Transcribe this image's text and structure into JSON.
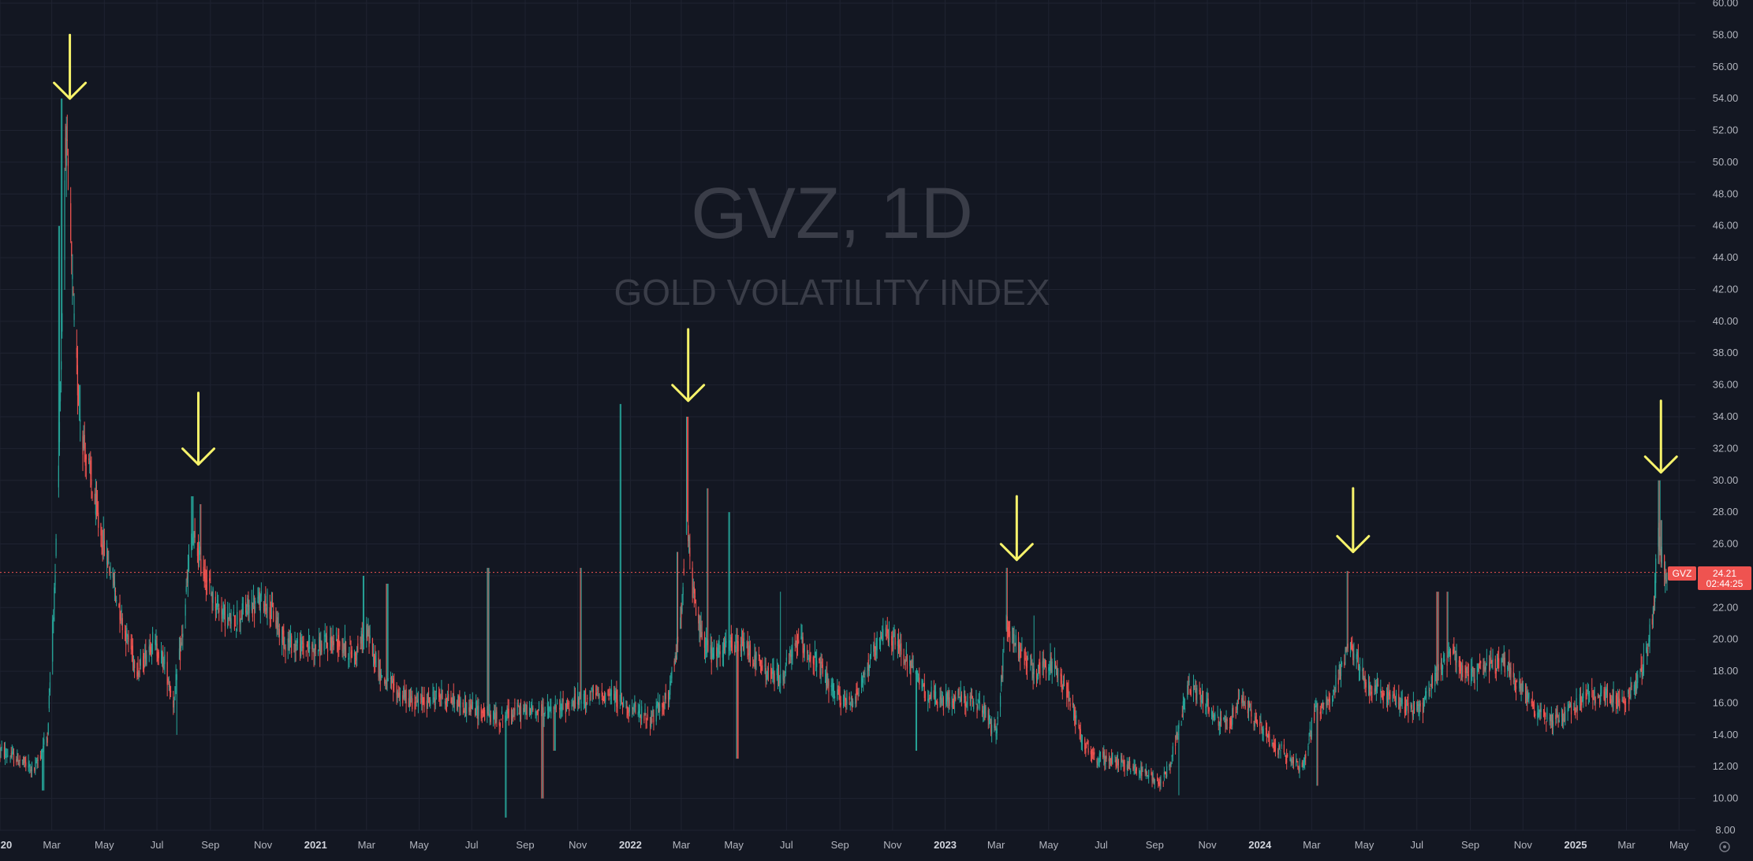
{
  "watermark": {
    "symbol_line": "GVZ, 1D",
    "name_line": "GOLD VOLATILITY INDEX"
  },
  "price_label": {
    "symbol": "GVZ",
    "price": "24.21",
    "countdown": "02:44:25"
  },
  "colors": {
    "background": "#131722",
    "grid": "#1f2331",
    "axis_text": "#b2b5be",
    "up_candle": "#26a69a",
    "down_candle": "#ef5350",
    "watermark": "#3a3d48",
    "arrow": "#f7f36b",
    "price_line": "#ef5350"
  },
  "chart_data": {
    "type": "candlestick",
    "symbol": "GVZ",
    "interval": "1D",
    "title": "GOLD VOLATILITY INDEX",
    "ylim": [
      8,
      60
    ],
    "xlim": [
      "2020-01-01",
      "2025-05-20"
    ],
    "y_ticks": [
      "8.00",
      "10.00",
      "12.00",
      "14.00",
      "16.00",
      "18.00",
      "20.00",
      "22.00",
      "24.00",
      "26.00",
      "28.00",
      "30.00",
      "32.00",
      "34.00",
      "36.00",
      "38.00",
      "40.00",
      "42.00",
      "44.00",
      "46.00",
      "48.00",
      "50.00",
      "52.00",
      "54.00",
      "56.00",
      "58.00",
      "60.00"
    ],
    "x_ticks": [
      {
        "label": "20",
        "date": "2020-01-01",
        "bold": true
      },
      {
        "label": "Mar",
        "date": "2020-03-01",
        "bold": false
      },
      {
        "label": "May",
        "date": "2020-05-01",
        "bold": false
      },
      {
        "label": "Jul",
        "date": "2020-07-01",
        "bold": false
      },
      {
        "label": "Sep",
        "date": "2020-09-01",
        "bold": false
      },
      {
        "label": "Nov",
        "date": "2020-11-01",
        "bold": false
      },
      {
        "label": "2021",
        "date": "2021-01-01",
        "bold": true
      },
      {
        "label": "Mar",
        "date": "2021-03-01",
        "bold": false
      },
      {
        "label": "May",
        "date": "2021-05-01",
        "bold": false
      },
      {
        "label": "Jul",
        "date": "2021-07-01",
        "bold": false
      },
      {
        "label": "Sep",
        "date": "2021-09-01",
        "bold": false
      },
      {
        "label": "Nov",
        "date": "2021-11-01",
        "bold": false
      },
      {
        "label": "2022",
        "date": "2022-01-01",
        "bold": true
      },
      {
        "label": "Mar",
        "date": "2022-03-01",
        "bold": false
      },
      {
        "label": "May",
        "date": "2022-05-01",
        "bold": false
      },
      {
        "label": "Jul",
        "date": "2022-07-01",
        "bold": false
      },
      {
        "label": "Sep",
        "date": "2022-09-01",
        "bold": false
      },
      {
        "label": "Nov",
        "date": "2022-11-01",
        "bold": false
      },
      {
        "label": "2023",
        "date": "2023-01-01",
        "bold": true
      },
      {
        "label": "Mar",
        "date": "2023-03-01",
        "bold": false
      },
      {
        "label": "May",
        "date": "2023-05-01",
        "bold": false
      },
      {
        "label": "Jul",
        "date": "2023-07-01",
        "bold": false
      },
      {
        "label": "Sep",
        "date": "2023-09-01",
        "bold": false
      },
      {
        "label": "Nov",
        "date": "2023-11-01",
        "bold": false
      },
      {
        "label": "2024",
        "date": "2024-01-01",
        "bold": true
      },
      {
        "label": "Mar",
        "date": "2024-03-01",
        "bold": false
      },
      {
        "label": "May",
        "date": "2024-05-01",
        "bold": false
      },
      {
        "label": "Jul",
        "date": "2024-07-01",
        "bold": false
      },
      {
        "label": "Sep",
        "date": "2024-09-01",
        "bold": false
      },
      {
        "label": "Nov",
        "date": "2024-11-01",
        "bold": false
      },
      {
        "label": "2025",
        "date": "2025-01-01",
        "bold": true
      },
      {
        "label": "Mar",
        "date": "2025-03-01",
        "bold": false
      },
      {
        "label": "May",
        "date": "2025-05-01",
        "bold": false
      }
    ],
    "series_anchors": [
      [
        "2020-01-01",
        13.0
      ],
      [
        "2020-01-20",
        12.5
      ],
      [
        "2020-02-10",
        11.8
      ],
      [
        "2020-02-25",
        14.0
      ],
      [
        "2020-03-05",
        24.0
      ],
      [
        "2020-03-12",
        38.0
      ],
      [
        "2020-03-17",
        52.0
      ],
      [
        "2020-03-22",
        46.0
      ],
      [
        "2020-03-28",
        38.0
      ],
      [
        "2020-04-05",
        33.0
      ],
      [
        "2020-04-15",
        30.0
      ],
      [
        "2020-04-25",
        27.0
      ],
      [
        "2020-05-10",
        24.0
      ],
      [
        "2020-05-25",
        20.5
      ],
      [
        "2020-06-10",
        18.0
      ],
      [
        "2020-06-25",
        20.0
      ],
      [
        "2020-07-10",
        18.5
      ],
      [
        "2020-07-20",
        16.0
      ],
      [
        "2020-07-30",
        20.0
      ],
      [
        "2020-08-10",
        26.5
      ],
      [
        "2020-08-20",
        25.0
      ],
      [
        "2020-09-05",
        22.5
      ],
      [
        "2020-09-25",
        21.0
      ],
      [
        "2020-10-15",
        22.0
      ],
      [
        "2020-11-05",
        22.5
      ],
      [
        "2020-11-25",
        20.0
      ],
      [
        "2020-12-15",
        19.5
      ],
      [
        "2021-01-05",
        19.5
      ],
      [
        "2021-01-25",
        20.0
      ],
      [
        "2021-02-15",
        19.0
      ],
      [
        "2021-03-01",
        20.5
      ],
      [
        "2021-03-20",
        17.5
      ],
      [
        "2021-04-10",
        16.5
      ],
      [
        "2021-05-01",
        16.0
      ],
      [
        "2021-05-25",
        16.5
      ],
      [
        "2021-06-15",
        16.0
      ],
      [
        "2021-07-10",
        15.5
      ],
      [
        "2021-08-01",
        15.0
      ],
      [
        "2021-08-20",
        15.5
      ],
      [
        "2021-09-10",
        15.5
      ],
      [
        "2021-10-01",
        15.5
      ],
      [
        "2021-10-25",
        16.0
      ],
      [
        "2021-11-20",
        16.5
      ],
      [
        "2021-12-10",
        16.5
      ],
      [
        "2022-01-05",
        15.5
      ],
      [
        "2022-01-25",
        15.0
      ],
      [
        "2022-02-15",
        16.5
      ],
      [
        "2022-02-28",
        21.0
      ],
      [
        "2022-03-07",
        28.0
      ],
      [
        "2022-03-12",
        24.0
      ],
      [
        "2022-03-20",
        21.0
      ],
      [
        "2022-04-05",
        19.0
      ],
      [
        "2022-04-25",
        19.5
      ],
      [
        "2022-05-15",
        19.5
      ],
      [
        "2022-06-05",
        18.0
      ],
      [
        "2022-06-25",
        17.5
      ],
      [
        "2022-07-15",
        20.0
      ],
      [
        "2022-08-05",
        18.5
      ],
      [
        "2022-08-25",
        16.5
      ],
      [
        "2022-09-15",
        16.0
      ],
      [
        "2022-10-05",
        18.5
      ],
      [
        "2022-10-25",
        20.5
      ],
      [
        "2022-11-15",
        19.0
      ],
      [
        "2022-12-05",
        17.0
      ],
      [
        "2022-12-25",
        16.0
      ],
      [
        "2023-01-20",
        16.5
      ],
      [
        "2023-02-15",
        15.5
      ],
      [
        "2023-03-01",
        14.0
      ],
      [
        "2023-03-13",
        21.0
      ],
      [
        "2023-03-25",
        19.5
      ],
      [
        "2023-04-15",
        18.0
      ],
      [
        "2023-05-05",
        18.5
      ],
      [
        "2023-05-25",
        16.5
      ],
      [
        "2023-06-10",
        13.5
      ],
      [
        "2023-06-25",
        12.5
      ],
      [
        "2023-07-15",
        12.5
      ],
      [
        "2023-08-05",
        12.0
      ],
      [
        "2023-08-25",
        11.5
      ],
      [
        "2023-09-10",
        11.0
      ],
      [
        "2023-09-25",
        13.5
      ],
      [
        "2023-10-10",
        17.0
      ],
      [
        "2023-10-25",
        16.5
      ],
      [
        "2023-11-10",
        15.0
      ],
      [
        "2023-11-25",
        14.5
      ],
      [
        "2023-12-10",
        16.5
      ],
      [
        "2023-12-25",
        15.0
      ],
      [
        "2024-01-15",
        13.5
      ],
      [
        "2024-02-05",
        12.5
      ],
      [
        "2024-02-20",
        12.0
      ],
      [
        "2024-03-05",
        15.5
      ],
      [
        "2024-03-25",
        16.5
      ],
      [
        "2024-04-12",
        19.5
      ],
      [
        "2024-04-20",
        19.0
      ],
      [
        "2024-05-05",
        17.0
      ],
      [
        "2024-05-25",
        16.5
      ],
      [
        "2024-06-15",
        16.0
      ],
      [
        "2024-07-05",
        15.5
      ],
      [
        "2024-07-25",
        18.0
      ],
      [
        "2024-08-10",
        19.5
      ],
      [
        "2024-08-30",
        17.5
      ],
      [
        "2024-09-20",
        18.5
      ],
      [
        "2024-10-10",
        18.5
      ],
      [
        "2024-10-30",
        17.0
      ],
      [
        "2024-11-15",
        15.5
      ],
      [
        "2024-12-05",
        15.0
      ],
      [
        "2024-12-25",
        15.5
      ],
      [
        "2025-01-15",
        16.5
      ],
      [
        "2025-02-05",
        16.5
      ],
      [
        "2025-02-25",
        16.0
      ],
      [
        "2025-03-10",
        17.0
      ],
      [
        "2025-03-25",
        19.0
      ],
      [
        "2025-04-01",
        22.0
      ],
      [
        "2025-04-07",
        27.0
      ],
      [
        "2025-04-11",
        25.0
      ],
      [
        "2025-04-17",
        24.2
      ]
    ],
    "spikes": [
      [
        "2020-03-09",
        46.0
      ],
      [
        "2020-03-13",
        54.0
      ],
      [
        "2020-03-16",
        48.0
      ],
      [
        "2020-03-19",
        43.0
      ],
      [
        "2020-04-02",
        36.0
      ],
      [
        "2020-04-15",
        31.5
      ],
      [
        "2020-08-11",
        29.0
      ],
      [
        "2020-08-21",
        28.5
      ],
      [
        "2021-02-26",
        24.0
      ],
      [
        "2021-03-25",
        23.5
      ],
      [
        "2021-07-20",
        24.5
      ],
      [
        "2021-11-05",
        24.5
      ],
      [
        "2021-12-20",
        34.8
      ],
      [
        "2022-02-25",
        25.5
      ],
      [
        "2022-03-08",
        34.0
      ],
      [
        "2022-04-01",
        29.5
      ],
      [
        "2022-04-25",
        28.0
      ],
      [
        "2022-06-25",
        23.0
      ],
      [
        "2023-03-13",
        24.5
      ],
      [
        "2023-04-15",
        21.5
      ],
      [
        "2024-04-12",
        24.3
      ],
      [
        "2024-07-25",
        23.0
      ],
      [
        "2024-08-05",
        23.0
      ],
      [
        "2025-04-08",
        30.0
      ],
      [
        "2025-04-10",
        27.5
      ]
    ],
    "dips": [
      [
        "2020-02-20",
        10.5
      ],
      [
        "2020-07-25",
        14.0
      ],
      [
        "2021-08-09",
        8.8
      ],
      [
        "2021-09-21",
        10.0
      ],
      [
        "2021-10-05",
        13.0
      ],
      [
        "2022-05-05",
        12.5
      ],
      [
        "2022-11-28",
        13.0
      ],
      [
        "2023-09-30",
        10.2
      ],
      [
        "2024-03-08",
        10.8
      ]
    ],
    "annotations": [
      {
        "type": "arrow-down",
        "date": "2020-03-22",
        "tip": 54.0,
        "tail": 58.0
      },
      {
        "type": "arrow-down",
        "date": "2020-08-18",
        "tip": 31.0,
        "tail": 35.5
      },
      {
        "type": "arrow-down",
        "date": "2022-03-09",
        "tip": 35.0,
        "tail": 39.5
      },
      {
        "type": "arrow-down",
        "date": "2023-03-25",
        "tip": 25.0,
        "tail": 29.0
      },
      {
        "type": "arrow-down",
        "date": "2024-04-18",
        "tip": 25.5,
        "tail": 29.5
      },
      {
        "type": "arrow-down",
        "date": "2025-04-10",
        "tip": 30.5,
        "tail": 35.0
      }
    ],
    "last_price": 24.21,
    "grid": true,
    "legend": "none"
  }
}
